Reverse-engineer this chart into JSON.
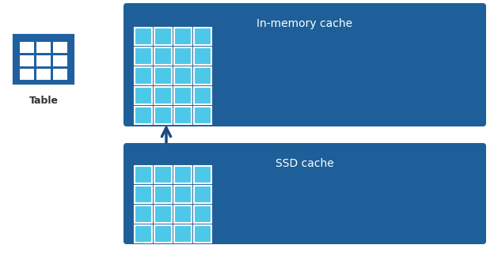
{
  "bg_color": "#ffffff",
  "box_bg": "#1e5f99",
  "cell_color": "#4dc8e8",
  "cell_border": "#ffffff",
  "arrow_color": "#1a4a80",
  "table_icon_color": "#2060a0",
  "table_icon_inner": "#ffffff",
  "title_color": "#ffffff",
  "table_label_color": "#333333",
  "in_memory_label": "In-memory cache",
  "ssd_label": "SSD cache",
  "table_label": "Table",
  "title_fontsize": 10,
  "label_fontsize": 9,
  "fig_w": 6.24,
  "fig_h": 3.29,
  "dpi": 100
}
